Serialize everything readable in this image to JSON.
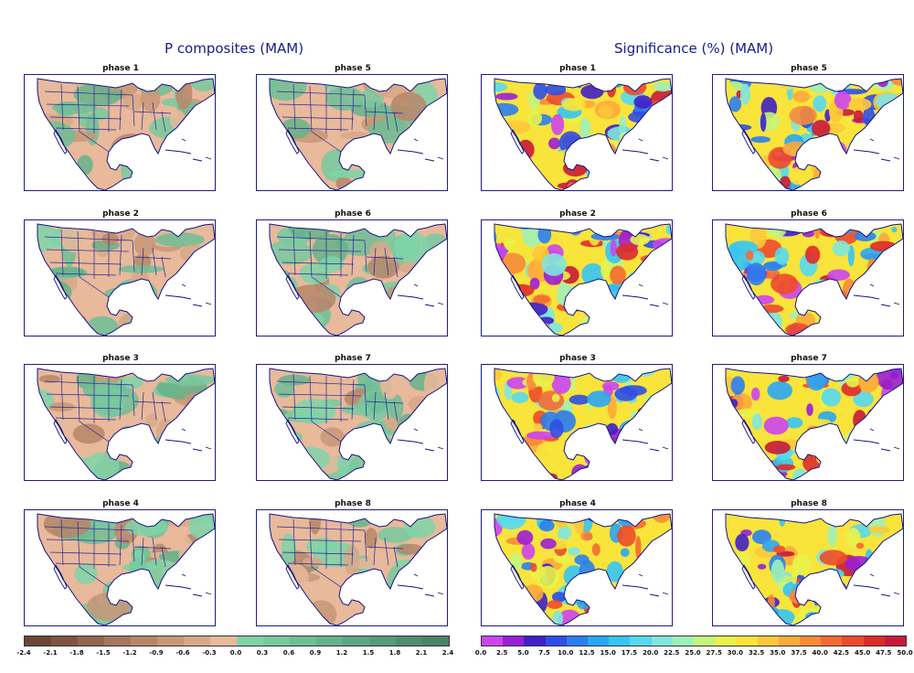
{
  "left_title": "P composites (MAM)",
  "right_title": "Significance (%) (MAM)",
  "left_panels": [
    {
      "title": "phase 1"
    },
    {
      "title": "phase 5"
    },
    {
      "title": "phase 2"
    },
    {
      "title": "phase 6"
    },
    {
      "title": "phase 3"
    },
    {
      "title": "phase 7"
    },
    {
      "title": "phase 4"
    },
    {
      "title": "phase 8"
    }
  ],
  "right_panels": [
    {
      "title": "phase 1"
    },
    {
      "title": "phase 5"
    },
    {
      "title": "phase 2"
    },
    {
      "title": "phase 6"
    },
    {
      "title": "phase 3"
    },
    {
      "title": "phase 7"
    },
    {
      "title": "phase 4"
    },
    {
      "title": "phase 8"
    }
  ],
  "left_colorbar": {
    "labels": [
      "-2.4",
      "-2.1",
      "-1.8",
      "-1.5",
      "-1.2",
      "-0.9",
      "-0.6",
      "-0.3",
      "0.0",
      "0.3",
      "0.6",
      "0.9",
      "1.2",
      "1.5",
      "1.8",
      "2.1",
      "2.4"
    ],
    "colors": [
      "#6b4636",
      "#7e5442",
      "#93654f",
      "#a6765d",
      "#b7866a",
      "#c79777",
      "#d7a888",
      "#e8b99a",
      "#7fd3a8",
      "#78c99f",
      "#6fbe96",
      "#66b18b",
      "#5ea583",
      "#579a7b",
      "#4f8d71",
      "#4a8468"
    ]
  },
  "right_colorbar": {
    "labels": [
      "0.0",
      "2.5",
      "5.0",
      "7.5",
      "10.0",
      "12.5",
      "15.0",
      "17.5",
      "20.0",
      "22.5",
      "25.0",
      "27.5",
      "30.0",
      "32.5",
      "35.0",
      "37.5",
      "40.0",
      "42.5",
      "45.0",
      "47.5",
      "50.0"
    ],
    "colors": [
      "#cc44ee",
      "#9a1fd6",
      "#4020c8",
      "#2f4ee6",
      "#2a7ff0",
      "#2aa6f5",
      "#36c4f4",
      "#55d8f0",
      "#7fe6de",
      "#9ff0b8",
      "#c4f57a",
      "#e8f24a",
      "#f8e43a",
      "#fcc83a",
      "#fcaa3a",
      "#f88a38",
      "#f46a32",
      "#ee4a2c",
      "#e02a2a",
      "#c81a3a"
    ]
  }
}
